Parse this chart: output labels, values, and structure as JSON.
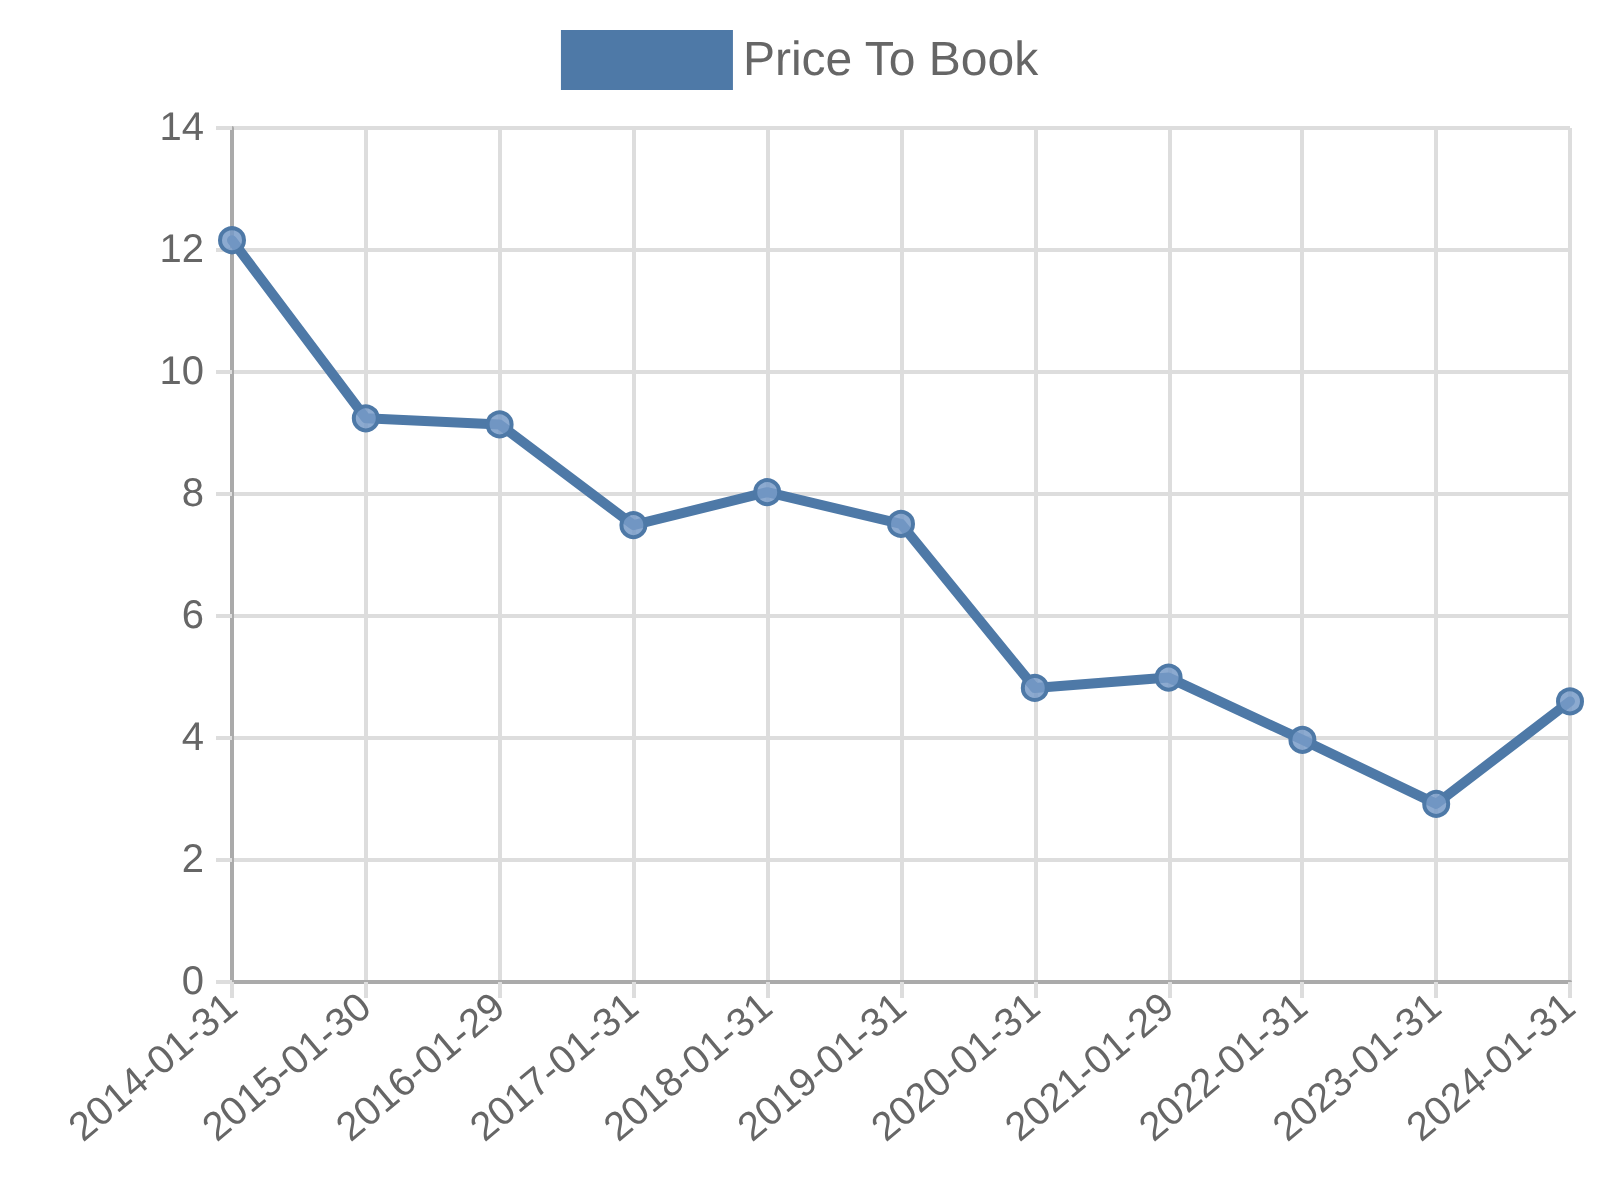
{
  "chart_data": {
    "type": "line",
    "categories": [
      "2014-01-31",
      "2015-01-30",
      "2016-01-29",
      "2017-01-31",
      "2018-01-31",
      "2019-01-31",
      "2020-01-31",
      "2021-01-29",
      "2022-01-31",
      "2023-01-31",
      "2024-01-31"
    ],
    "series": [
      {
        "name": "Price To Book",
        "color": "#4e79a7",
        "values": [
          12.16,
          9.24,
          9.14,
          7.49,
          8.03,
          7.51,
          4.82,
          4.99,
          3.97,
          2.92,
          4.6
        ]
      }
    ],
    "ylim": [
      0,
      14
    ],
    "yticks": [
      0,
      2,
      4,
      6,
      8,
      10,
      12,
      14
    ],
    "grid": true,
    "legend": "top",
    "marker": "circle",
    "line_style": "solid"
  }
}
